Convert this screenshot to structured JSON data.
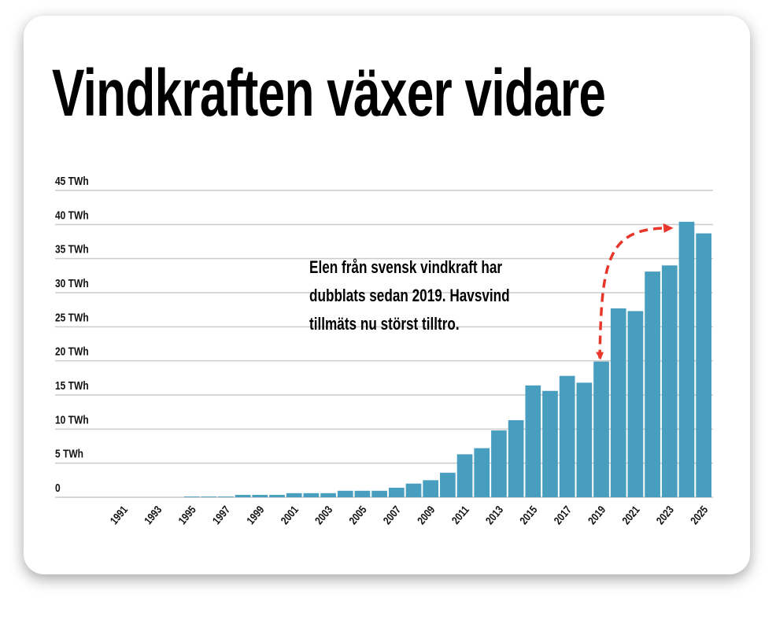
{
  "title": "Vindkraften växer vidare",
  "annotation": [
    "Elen från svensk vindkraft har",
    "dubblats sedan 2019. Havsvind",
    "tillmäts nu störst tilltro."
  ],
  "colors": {
    "bar": "#479ebf",
    "grid": "#cccccc",
    "arrow": "#e8372a"
  },
  "chart_data": {
    "type": "bar",
    "title": "Vindkraften växer vidare",
    "xlabel": "",
    "ylabel": "",
    "ylim": [
      0,
      45
    ],
    "yticks": [
      0,
      5,
      10,
      15,
      20,
      25,
      30,
      35,
      40,
      45
    ],
    "ytick_labels": [
      "0",
      "5 TWh",
      "10 TWh",
      "15 TWh",
      "20 TWh",
      "25 TWh",
      "30 TWh",
      "35 TWh",
      "40 TWh",
      "45 TWh"
    ],
    "categories": [
      "1991",
      "1992",
      "1993",
      "1994",
      "1995",
      "1996",
      "1997",
      "1998",
      "1999",
      "2000",
      "2001",
      "2002",
      "2003",
      "2004",
      "2005",
      "2006",
      "2007",
      "2008",
      "2009",
      "2010",
      "2011",
      "2012",
      "2013",
      "2014",
      "2015",
      "2016",
      "2017",
      "2018",
      "2019",
      "2020",
      "2021",
      "2022",
      "2023",
      "2024",
      "2025"
    ],
    "xtick_labels": [
      "1991",
      "1993",
      "1995",
      "1997",
      "1999",
      "2001",
      "2003",
      "2005",
      "2007",
      "2009",
      "2011",
      "2013",
      "2015",
      "2017",
      "2019",
      "2021",
      "2023",
      "2025"
    ],
    "values": [
      0,
      0,
      0,
      0,
      0.1,
      0.1,
      0.1,
      0.35,
      0.35,
      0.35,
      0.6,
      0.6,
      0.6,
      0.95,
      0.95,
      0.95,
      1.4,
      2.0,
      2.5,
      3.6,
      6.3,
      7.2,
      9.8,
      11.3,
      16.4,
      15.6,
      17.8,
      16.8,
      19.9,
      27.7,
      27.3,
      33.1,
      34.0,
      40.4,
      38.7
    ],
    "grid": true,
    "annotation_arrow": {
      "from": "2019",
      "to": "2024"
    }
  }
}
